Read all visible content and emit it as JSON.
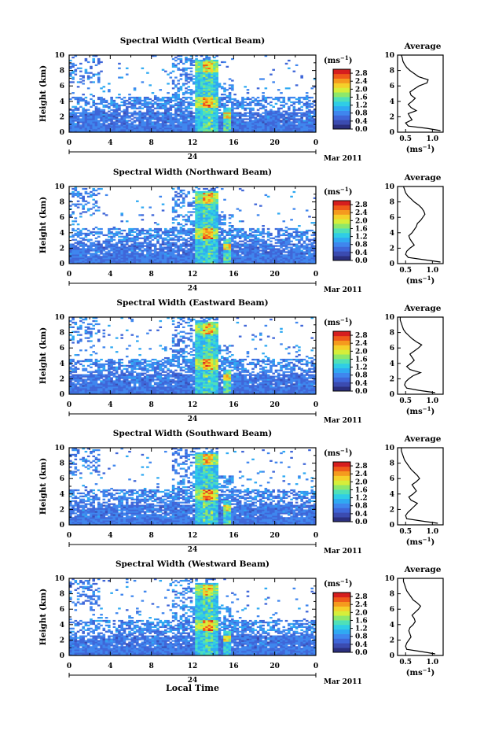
{
  "figure": {
    "xlabel": "Local Time",
    "date_label_day": "24",
    "date_label_month": "Mar 2011",
    "colorbar_unit": "(ms",
    "colorbar_unit_exp": "−1",
    "avg_title": "Average",
    "avg_xlabel": "(ms",
    "avg_xlabel_exp": "−1",
    "ylabel": "Height (km)"
  },
  "colors": {
    "colormap": [
      "#2b2f7e",
      "#3b4bb0",
      "#3f66d8",
      "#3f86ee",
      "#2fa9f2",
      "#2fcde6",
      "#4fe0b8",
      "#8ee86a",
      "#d6ee3a",
      "#f5d02a",
      "#f59a1e",
      "#ef5a1a",
      "#d61e1e"
    ]
  },
  "chart_data": [
    {
      "type": "heatmap",
      "title": "Spectral Width (Vertical Beam)",
      "xlim": [
        0,
        24
      ],
      "ylim": [
        0,
        10
      ],
      "xticks": [
        "0",
        "4",
        "8",
        "12",
        "16",
        "20",
        "0"
      ],
      "yticks": [
        "0",
        "2",
        "4",
        "6",
        "8",
        "10"
      ],
      "colorbar_ticks": [
        "0.0",
        "0.4",
        "0.8",
        "1.2",
        "1.6",
        "2.0",
        "2.4",
        "2.8"
      ],
      "colorbar_range": [
        0,
        3.0
      ],
      "average_profile": {
        "xticks": [
          "0.5",
          "1.0"
        ],
        "xlim": [
          0.35,
          1.2
        ],
        "heights": [
          0.2,
          0.5,
          0.8,
          1.2,
          1.6,
          2.0,
          2.4,
          2.8,
          3.2,
          3.6,
          4.0,
          4.4,
          4.8,
          5.2,
          5.6,
          6.0,
          6.4,
          6.8,
          7.2,
          7.6,
          8.0,
          8.4,
          8.8,
          9.2,
          9.6,
          10.0
        ],
        "values": [
          1.15,
          0.9,
          0.55,
          0.5,
          0.62,
          0.58,
          0.55,
          0.7,
          0.6,
          0.55,
          0.62,
          0.68,
          0.6,
          0.58,
          0.66,
          0.75,
          0.9,
          0.92,
          0.74,
          0.66,
          0.58,
          0.52,
          0.48,
          0.45,
          0.44,
          0.42
        ]
      }
    },
    {
      "type": "heatmap",
      "title": "Spectral Width (Northward Beam)",
      "xlim": [
        0,
        24
      ],
      "ylim": [
        0,
        10
      ],
      "xticks": [
        "0",
        "4",
        "8",
        "12",
        "16",
        "20",
        "0"
      ],
      "yticks": [
        "0",
        "2",
        "4",
        "6",
        "8",
        "10"
      ],
      "colorbar_ticks": [
        "0.0",
        "0.4",
        "0.8",
        "1.2",
        "1.6",
        "2.0",
        "2.4",
        "2.8"
      ],
      "colorbar_range": [
        0,
        3.0
      ],
      "average_profile": {
        "xticks": [
          "0.5",
          "1.0"
        ],
        "xlim": [
          0.35,
          1.2
        ],
        "heights": [
          0.2,
          0.5,
          0.8,
          1.2,
          1.6,
          2.0,
          2.4,
          2.8,
          3.2,
          3.6,
          4.0,
          4.4,
          4.8,
          5.2,
          5.6,
          6.0,
          6.4,
          6.8,
          7.2,
          7.6,
          8.0,
          8.4,
          8.8,
          9.2,
          9.6,
          10.0
        ],
        "values": [
          1.15,
          0.85,
          0.55,
          0.5,
          0.52,
          0.58,
          0.66,
          0.62,
          0.58,
          0.56,
          0.62,
          0.66,
          0.7,
          0.72,
          0.78,
          0.82,
          0.86,
          0.84,
          0.8,
          0.74,
          0.66,
          0.6,
          0.54,
          0.5,
          0.48,
          0.46
        ]
      }
    },
    {
      "type": "heatmap",
      "title": "Spectral Width (Eastward Beam)",
      "xlim": [
        0,
        24
      ],
      "ylim": [
        0,
        10
      ],
      "xticks": [
        "0",
        "4",
        "8",
        "12",
        "16",
        "20",
        "0"
      ],
      "yticks": [
        "0",
        "2",
        "4",
        "6",
        "8",
        "10"
      ],
      "colorbar_ticks": [
        "0.0",
        "0.4",
        "0.8",
        "1.2",
        "1.6",
        "2.0",
        "2.4",
        "2.8"
      ],
      "colorbar_range": [
        0,
        3.0
      ],
      "average_profile": {
        "xticks": [
          "0.5",
          "1.0"
        ],
        "xlim": [
          0.35,
          1.2
        ],
        "heights": [
          0.2,
          0.5,
          0.8,
          1.2,
          1.6,
          2.0,
          2.4,
          2.8,
          3.2,
          3.6,
          4.0,
          4.4,
          4.8,
          5.2,
          5.6,
          6.0,
          6.4,
          6.8,
          7.2,
          7.6,
          8.0,
          8.4,
          8.8,
          9.2,
          9.6,
          10.0
        ],
        "values": [
          1.05,
          0.75,
          0.52,
          0.48,
          0.5,
          0.56,
          0.64,
          0.78,
          0.58,
          0.52,
          0.6,
          0.66,
          0.62,
          0.58,
          0.66,
          0.74,
          0.8,
          0.7,
          0.62,
          0.56,
          0.5,
          0.46,
          0.44,
          0.42,
          0.4,
          0.4
        ]
      }
    },
    {
      "type": "heatmap",
      "title": "Spectral Width (Southward Beam)",
      "xlim": [
        0,
        24
      ],
      "ylim": [
        0,
        10
      ],
      "xticks": [
        "0",
        "4",
        "8",
        "12",
        "16",
        "20",
        "0"
      ],
      "yticks": [
        "0",
        "2",
        "4",
        "6",
        "8",
        "10"
      ],
      "colorbar_ticks": [
        "0.0",
        "0.4",
        "0.8",
        "1.2",
        "1.6",
        "2.0",
        "2.4",
        "2.8"
      ],
      "colorbar_range": [
        0,
        3.0
      ],
      "average_profile": {
        "xticks": [
          "0.5",
          "1.0"
        ],
        "xlim": [
          0.35,
          1.2
        ],
        "heights": [
          0.2,
          0.5,
          0.8,
          1.2,
          1.6,
          2.0,
          2.4,
          2.8,
          3.2,
          3.6,
          4.0,
          4.4,
          4.8,
          5.2,
          5.6,
          6.0,
          6.4,
          6.8,
          7.2,
          7.6,
          8.0,
          8.4,
          8.8,
          9.2,
          9.6,
          10.0
        ],
        "values": [
          1.1,
          0.8,
          0.52,
          0.5,
          0.54,
          0.6,
          0.66,
          0.72,
          0.6,
          0.56,
          0.64,
          0.7,
          0.66,
          0.62,
          0.7,
          0.76,
          0.72,
          0.66,
          0.6,
          0.56,
          0.52,
          0.48,
          0.46,
          0.44,
          0.42,
          0.42
        ]
      }
    },
    {
      "type": "heatmap",
      "title": "Spectral Width (Westward Beam)",
      "xlim": [
        0,
        24
      ],
      "ylim": [
        0,
        10
      ],
      "xticks": [
        "0",
        "4",
        "8",
        "12",
        "16",
        "20",
        "0"
      ],
      "yticks": [
        "0",
        "2",
        "4",
        "6",
        "8",
        "10"
      ],
      "colorbar_ticks": [
        "0.0",
        "0.4",
        "0.8",
        "1.2",
        "1.6",
        "2.0",
        "2.4",
        "2.8"
      ],
      "colorbar_range": [
        0,
        3.0
      ],
      "average_profile": {
        "xticks": [
          "0.5",
          "1.0"
        ],
        "xlim": [
          0.35,
          1.2
        ],
        "heights": [
          0.2,
          0.5,
          0.8,
          1.2,
          1.6,
          2.0,
          2.4,
          2.8,
          3.2,
          3.6,
          4.0,
          4.4,
          4.8,
          5.2,
          5.6,
          6.0,
          6.4,
          6.8,
          7.2,
          7.6,
          8.0,
          8.4,
          8.8,
          9.2,
          9.6,
          10.0
        ],
        "values": [
          1.05,
          0.8,
          0.52,
          0.5,
          0.52,
          0.56,
          0.6,
          0.58,
          0.56,
          0.58,
          0.64,
          0.68,
          0.66,
          0.62,
          0.68,
          0.74,
          0.78,
          0.72,
          0.64,
          0.6,
          0.56,
          0.52,
          0.5,
          0.48,
          0.46,
          0.46
        ]
      }
    }
  ]
}
